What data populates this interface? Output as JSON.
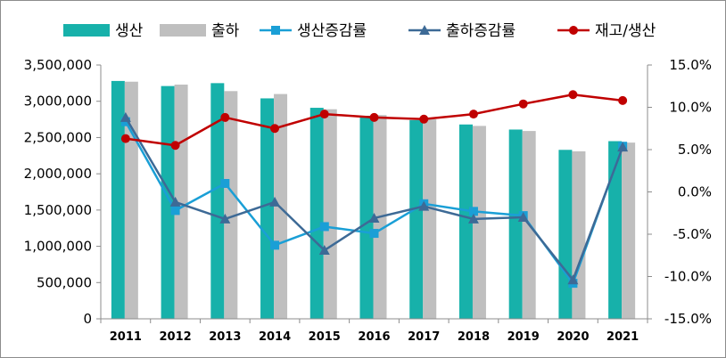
{
  "chart_data": {
    "type": "bar",
    "categories": [
      "2011",
      "2012",
      "2013",
      "2014",
      "2015",
      "2016",
      "2017",
      "2018",
      "2019",
      "2020",
      "2021"
    ],
    "series": [
      {
        "name": "생산",
        "type": "bar",
        "axis": "left",
        "color": "#17b1aa",
        "values": [
          3280000,
          3210000,
          3250000,
          3040000,
          2910000,
          2800000,
          2740000,
          2680000,
          2610000,
          2330000,
          2450000
        ]
      },
      {
        "name": "출하",
        "type": "bar",
        "axis": "left",
        "color": "#bfbfbf",
        "values": [
          3270000,
          3230000,
          3140000,
          3100000,
          2890000,
          2810000,
          2750000,
          2660000,
          2590000,
          2310000,
          2430000
        ]
      },
      {
        "name": "생산증감률",
        "type": "line",
        "axis": "right",
        "color": "#1a9fd6",
        "marker": "square",
        "values": [
          8.3,
          -2.2,
          1.0,
          -6.3,
          -4.1,
          -4.9,
          -1.4,
          -2.3,
          -2.8,
          -10.8,
          5.4
        ]
      },
      {
        "name": "출하증감률",
        "type": "line",
        "axis": "right",
        "color": "#3d6a96",
        "marker": "triangle",
        "values": [
          8.8,
          -1.2,
          -3.2,
          -1.2,
          -6.9,
          -3.1,
          -1.7,
          -3.2,
          -3.0,
          -10.4,
          5.3
        ]
      },
      {
        "name": "재고/생산",
        "type": "line",
        "axis": "right",
        "color": "#c00000",
        "marker": "circle",
        "values": [
          6.3,
          5.5,
          8.8,
          7.5,
          9.2,
          8.8,
          8.6,
          9.2,
          10.4,
          11.5,
          10.8
        ]
      }
    ],
    "y_left": {
      "min": 0,
      "max": 3500000,
      "step": 500000,
      "ticks": [
        "0",
        "500,000",
        "1,000,000",
        "1,500,000",
        "2,000,000",
        "2,500,000",
        "3,000,000",
        "3,500,000"
      ]
    },
    "y_right": {
      "min": -15,
      "max": 15,
      "step": 5,
      "ticks": [
        "-15.0%",
        "-10.0%",
        "-5.0%",
        "0.0%",
        "5.0%",
        "10.0%",
        "15.0%"
      ]
    },
    "grid": false,
    "legend": "top"
  }
}
